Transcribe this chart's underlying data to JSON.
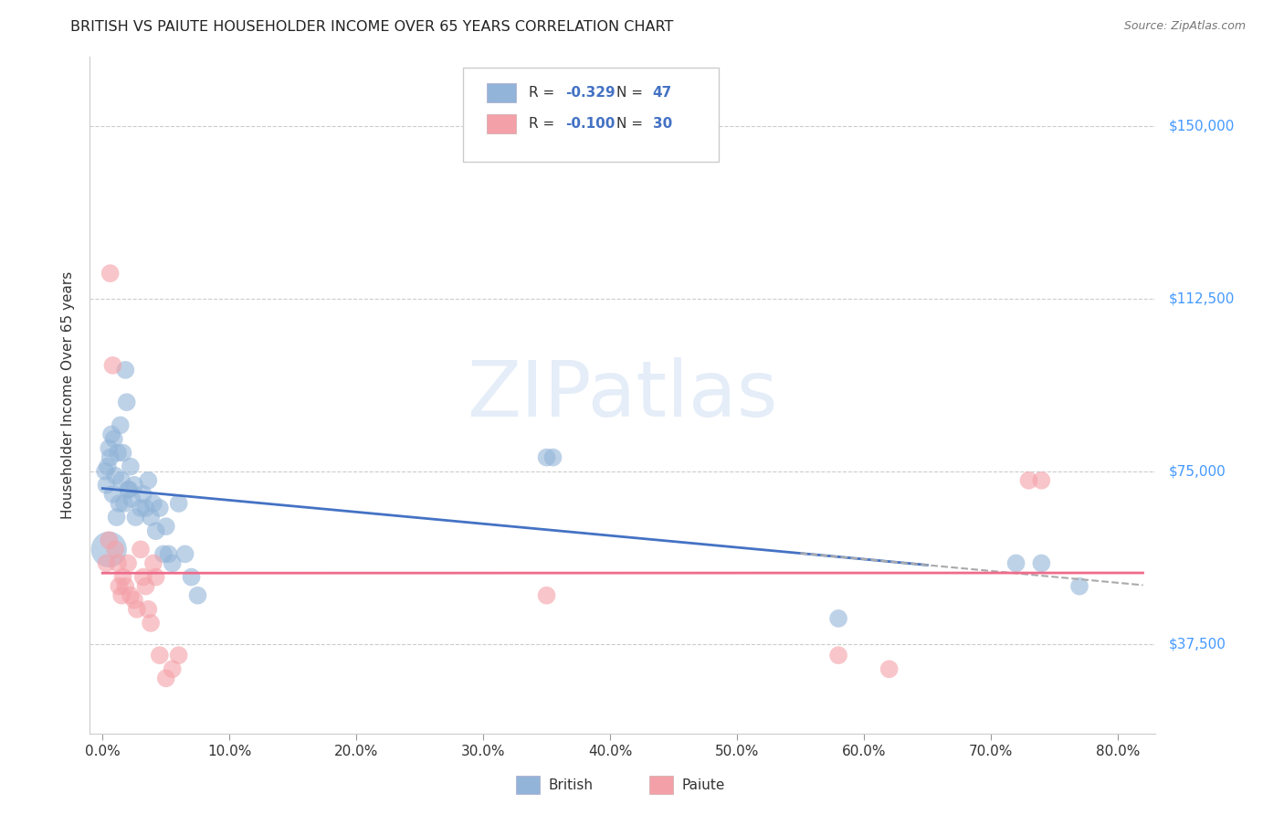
{
  "title": "BRITISH VS PAIUTE HOUSEHOLDER INCOME OVER 65 YEARS CORRELATION CHART",
  "source": "Source: ZipAtlas.com",
  "ylabel": "Householder Income Over 65 years",
  "xlabel_ticks": [
    "0.0%",
    "10.0%",
    "20.0%",
    "30.0%",
    "40.0%",
    "50.0%",
    "60.0%",
    "70.0%",
    "80.0%"
  ],
  "ytick_labels": [
    "$37,500",
    "$75,000",
    "$112,500",
    "$150,000"
  ],
  "ytick_values": [
    37500,
    75000,
    112500,
    150000
  ],
  "xlim": [
    -0.01,
    0.83
  ],
  "ylim": [
    18000,
    165000
  ],
  "watermark_text": "ZIPatlas",
  "british_color": "#92B4D8",
  "paiute_color": "#F4A0A8",
  "blue_line_color": "#4472C4",
  "pink_line_color": "#EE6B8B",
  "dashed_line_color": "#AAAAAA",
  "legend_R_color": "#4472C4",
  "legend_N_color": "#4472C4",
  "british_points": [
    [
      0.002,
      75000
    ],
    [
      0.003,
      72000
    ],
    [
      0.004,
      76000
    ],
    [
      0.005,
      80000
    ],
    [
      0.006,
      78000
    ],
    [
      0.007,
      83000
    ],
    [
      0.008,
      70000
    ],
    [
      0.009,
      82000
    ],
    [
      0.01,
      74000
    ],
    [
      0.011,
      65000
    ],
    [
      0.012,
      79000
    ],
    [
      0.013,
      68000
    ],
    [
      0.014,
      85000
    ],
    [
      0.015,
      73000
    ],
    [
      0.016,
      79000
    ],
    [
      0.017,
      68000
    ],
    [
      0.018,
      97000
    ],
    [
      0.019,
      90000
    ],
    [
      0.02,
      71000
    ],
    [
      0.021,
      71000
    ],
    [
      0.022,
      76000
    ],
    [
      0.023,
      69000
    ],
    [
      0.025,
      72000
    ],
    [
      0.026,
      65000
    ],
    [
      0.03,
      67000
    ],
    [
      0.032,
      70000
    ],
    [
      0.034,
      67000
    ],
    [
      0.036,
      73000
    ],
    [
      0.038,
      65000
    ],
    [
      0.04,
      68000
    ],
    [
      0.042,
      62000
    ],
    [
      0.045,
      67000
    ],
    [
      0.048,
      57000
    ],
    [
      0.05,
      63000
    ],
    [
      0.052,
      57000
    ],
    [
      0.055,
      55000
    ],
    [
      0.06,
      68000
    ],
    [
      0.065,
      57000
    ],
    [
      0.07,
      52000
    ],
    [
      0.075,
      48000
    ],
    [
      0.35,
      78000
    ],
    [
      0.355,
      78000
    ],
    [
      0.58,
      43000
    ],
    [
      0.72,
      55000
    ],
    [
      0.74,
      55000
    ],
    [
      0.77,
      50000
    ],
    [
      0.005,
      58000
    ]
  ],
  "paiute_points": [
    [
      0.003,
      55000
    ],
    [
      0.005,
      60000
    ],
    [
      0.006,
      118000
    ],
    [
      0.008,
      98000
    ],
    [
      0.01,
      58000
    ],
    [
      0.012,
      55000
    ],
    [
      0.013,
      50000
    ],
    [
      0.015,
      48000
    ],
    [
      0.016,
      52000
    ],
    [
      0.018,
      50000
    ],
    [
      0.02,
      55000
    ],
    [
      0.022,
      48000
    ],
    [
      0.025,
      47000
    ],
    [
      0.027,
      45000
    ],
    [
      0.03,
      58000
    ],
    [
      0.032,
      52000
    ],
    [
      0.034,
      50000
    ],
    [
      0.036,
      45000
    ],
    [
      0.038,
      42000
    ],
    [
      0.04,
      55000
    ],
    [
      0.042,
      52000
    ],
    [
      0.045,
      35000
    ],
    [
      0.05,
      30000
    ],
    [
      0.055,
      32000
    ],
    [
      0.06,
      35000
    ],
    [
      0.35,
      48000
    ],
    [
      0.58,
      35000
    ],
    [
      0.62,
      32000
    ],
    [
      0.73,
      73000
    ],
    [
      0.74,
      73000
    ]
  ],
  "british_sizes": [
    200,
    200,
    200,
    200,
    200,
    200,
    200,
    200,
    200,
    200,
    200,
    200,
    200,
    200,
    200,
    200,
    200,
    200,
    200,
    200,
    200,
    200,
    200,
    200,
    200,
    200,
    200,
    200,
    200,
    200,
    200,
    200,
    200,
    200,
    200,
    200,
    200,
    200,
    200,
    200,
    200,
    200,
    200,
    200,
    200,
    200,
    800
  ],
  "paiute_sizes": [
    200,
    200,
    200,
    200,
    200,
    200,
    200,
    200,
    200,
    200,
    200,
    200,
    200,
    200,
    200,
    200,
    200,
    200,
    200,
    200,
    200,
    200,
    200,
    200,
    200,
    200,
    200,
    200,
    200,
    200
  ]
}
